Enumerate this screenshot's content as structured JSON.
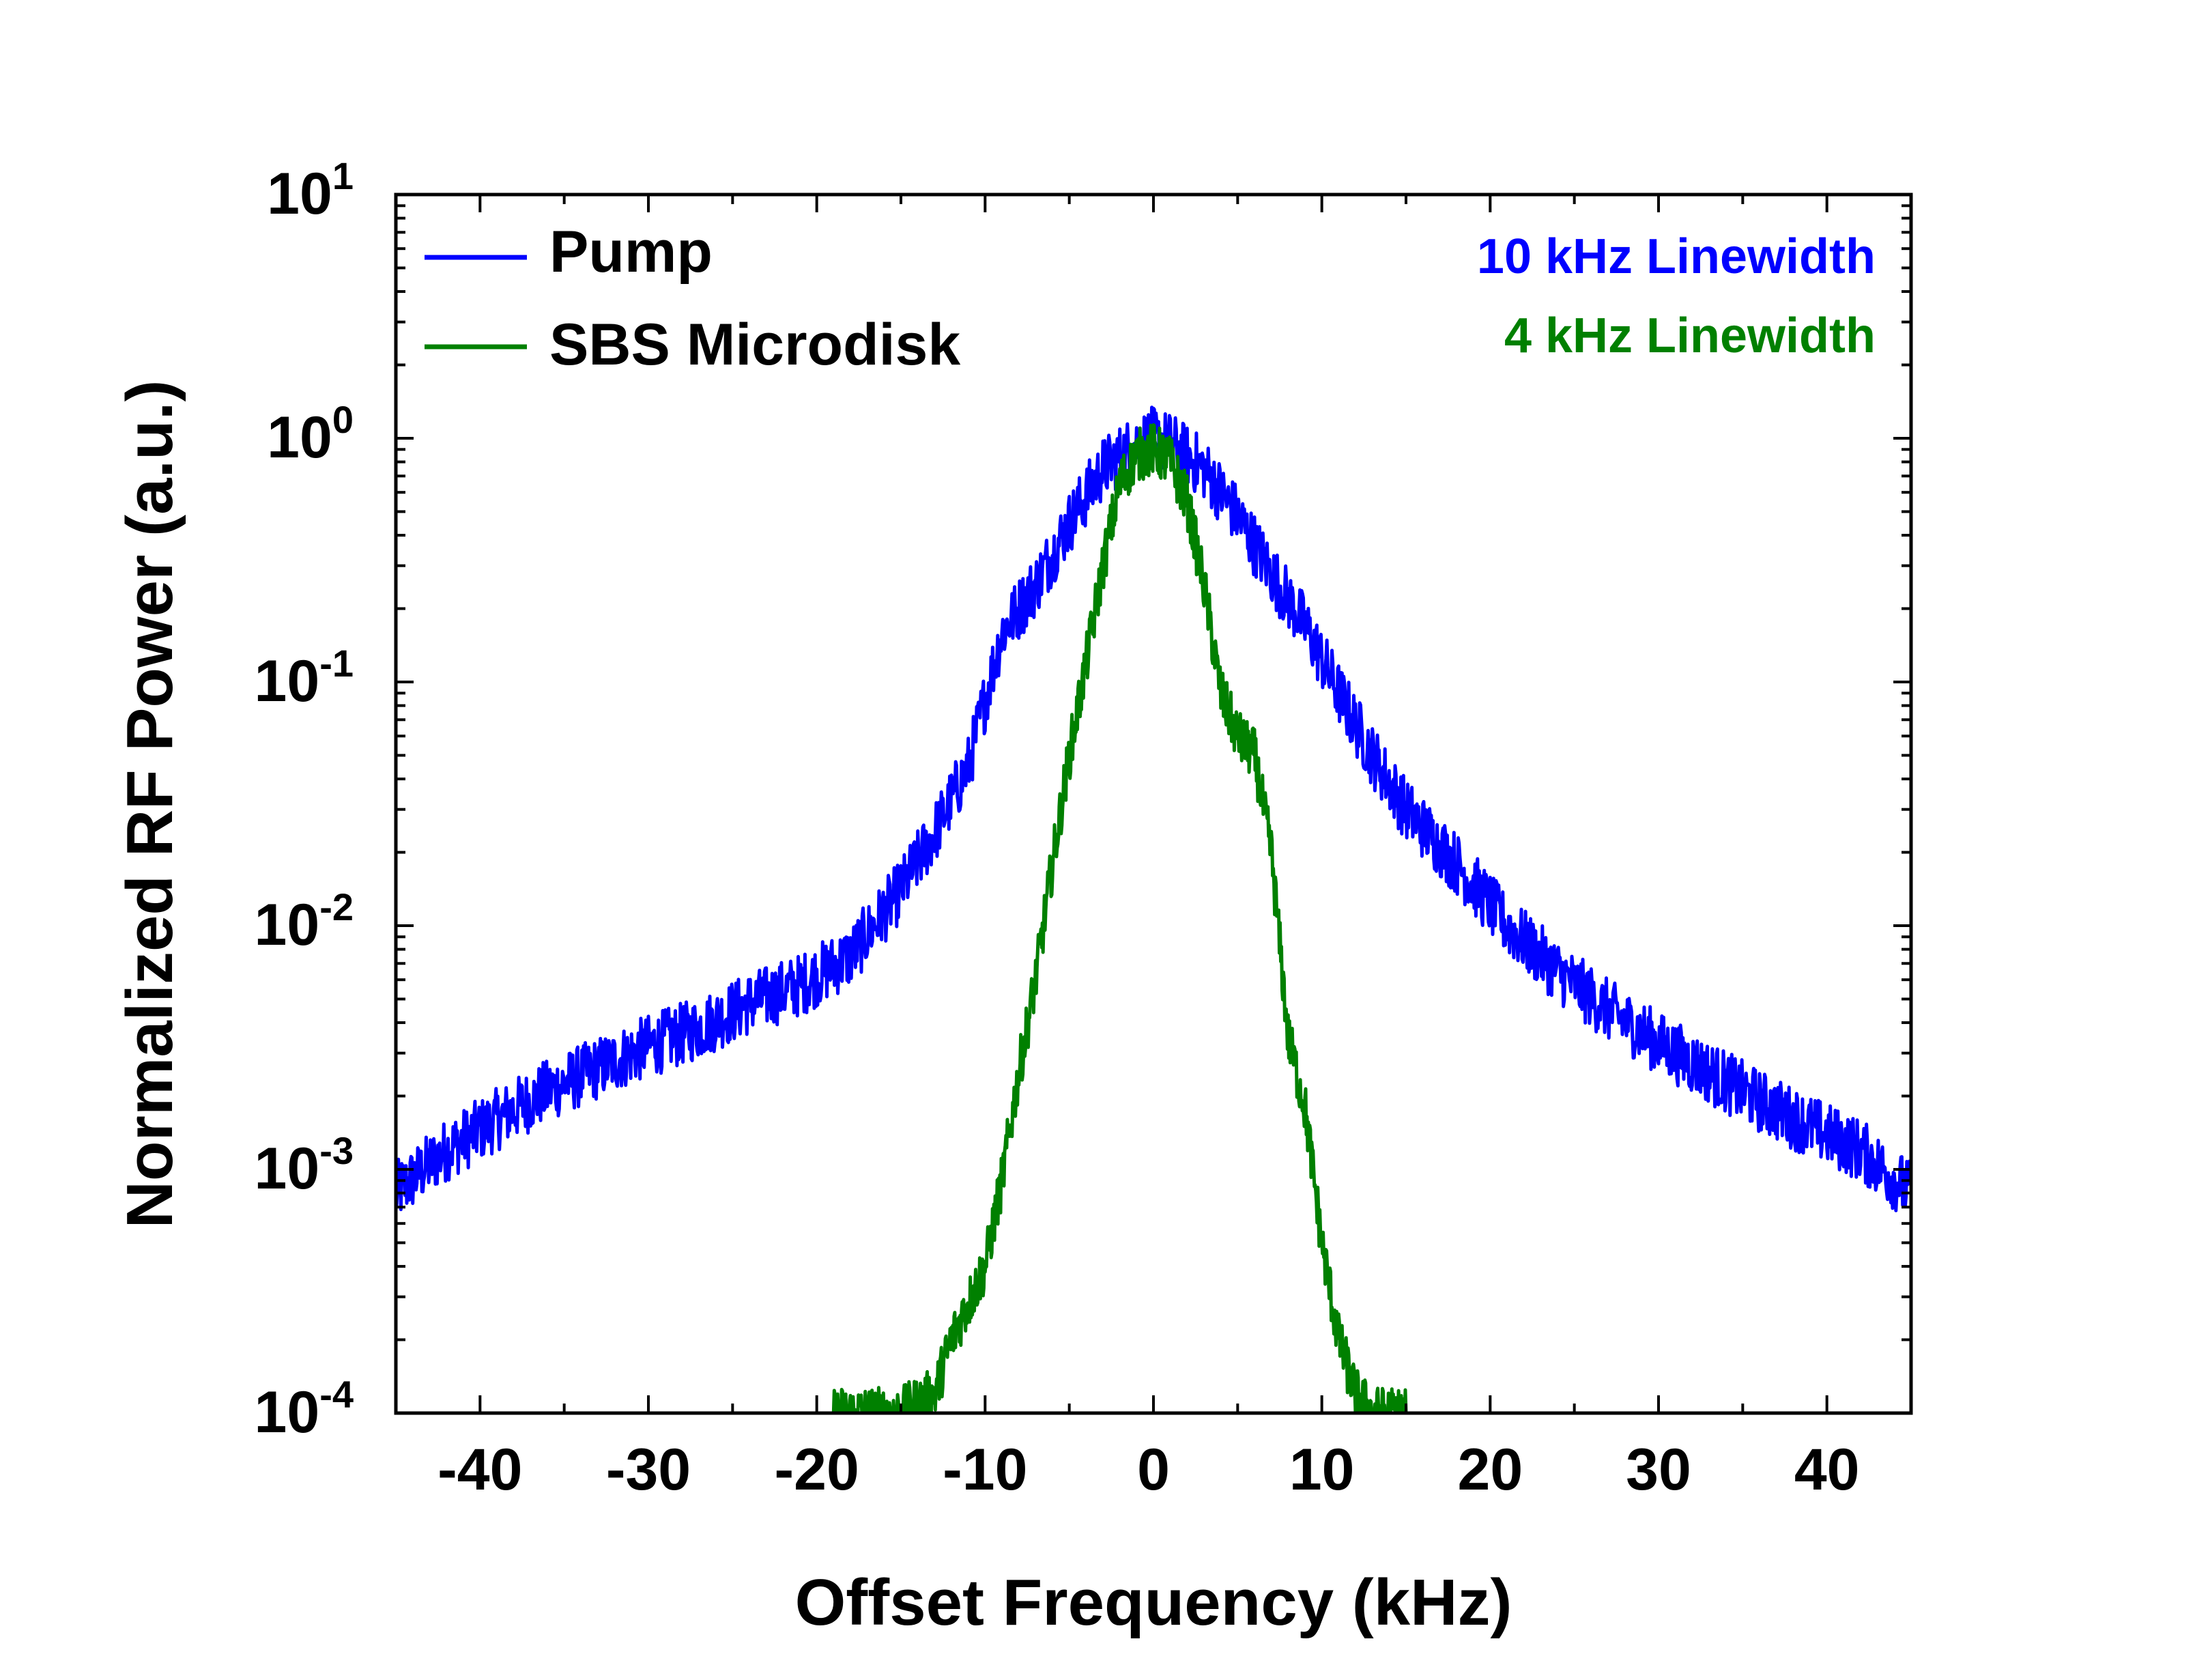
{
  "chart_data": {
    "type": "line",
    "xlabel": "Offset Frequency (kHz)",
    "ylabel": "Normalized RF Power (a.u.)",
    "x_range": [
      -45,
      45
    ],
    "y_range": [
      0.0001,
      10
    ],
    "y_scale": "log",
    "x_ticks": [
      -40,
      -30,
      -20,
      -10,
      0,
      10,
      20,
      30,
      40
    ],
    "x_tick_labels": [
      "-40",
      "-30",
      "-20",
      "-10",
      "0",
      "10",
      "20",
      "30",
      "40"
    ],
    "y_ticks": [
      {
        "value": 10,
        "base": "10",
        "exp": "1"
      },
      {
        "value": 1,
        "base": "10",
        "exp": "0"
      },
      {
        "value": 0.1,
        "base": "10",
        "exp": "-1"
      },
      {
        "value": 0.01,
        "base": "10",
        "exp": "-2"
      },
      {
        "value": 0.001,
        "base": "10",
        "exp": "-3"
      },
      {
        "value": 0.0001,
        "base": "10",
        "exp": "-4"
      }
    ],
    "grid": false,
    "legend_position": "top-left",
    "series": [
      {
        "name": "Pump",
        "color": "#0000ff",
        "annotation": "10 kHz Linewidth",
        "x": [
          -45,
          -42,
          -39,
          -36,
          -33,
          -30,
          -27,
          -24,
          -21,
          -18,
          -15,
          -13,
          -11,
          -9,
          -7,
          -5,
          -3,
          -1,
          0,
          1,
          3,
          5,
          7,
          9,
          11,
          13,
          15,
          18,
          21,
          24,
          27,
          30,
          33,
          36,
          39,
          42,
          45
        ],
        "y": [
          0.0008,
          0.0012,
          0.0016,
          0.0021,
          0.0026,
          0.0032,
          0.0038,
          0.0048,
          0.0057,
          0.0075,
          0.014,
          0.024,
          0.045,
          0.16,
          0.25,
          0.45,
          0.75,
          0.95,
          1.0,
          0.95,
          0.75,
          0.48,
          0.28,
          0.17,
          0.09,
          0.05,
          0.03,
          0.018,
          0.01,
          0.0065,
          0.0045,
          0.0033,
          0.0025,
          0.0019,
          0.0015,
          0.0012,
          0.0008
        ]
      },
      {
        "name": "SBS Microdisk",
        "color": "#008000",
        "annotation": "4 kHz Linewidth",
        "x": [
          -19,
          -15,
          -13,
          -12,
          -10,
          -9,
          -8,
          -7,
          -6,
          -5,
          -4,
          -3,
          -2,
          -1,
          0,
          1,
          2,
          3,
          4,
          5,
          6,
          7,
          8,
          9,
          10,
          11,
          12,
          13,
          15
        ],
        "y": [
          0.0001,
          0.0001,
          0.00012,
          0.0002,
          0.0004,
          0.0009,
          0.0025,
          0.006,
          0.018,
          0.05,
          0.12,
          0.3,
          0.65,
          0.85,
          0.9,
          0.8,
          0.55,
          0.25,
          0.09,
          0.06,
          0.05,
          0.02,
          0.0035,
          0.0018,
          0.0005,
          0.0002,
          0.00012,
          0.0001,
          0.0001
        ]
      }
    ]
  }
}
